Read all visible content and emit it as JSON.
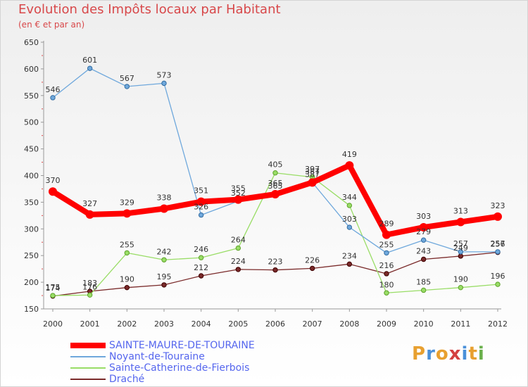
{
  "title": "Evolution des Impôts locaux par Habitant",
  "subtitle": "(en € et par an)",
  "brand": {
    "letters": [
      "P",
      "r",
      "o",
      "x",
      "i",
      "t",
      "i"
    ],
    "colors": [
      "#e8a030",
      "#4a90d9",
      "#e8a030",
      "#d44040",
      "#4a90d9",
      "#e8a030",
      "#6ab04c"
    ]
  },
  "chart_data": {
    "type": "line",
    "title": "Evolution des Impôts locaux par Habitant",
    "subtitle": "(en € et par an)",
    "x": [
      "2000",
      "2001",
      "2002",
      "2003",
      "2004",
      "2005",
      "2006",
      "2007",
      "2008",
      "2009",
      "2010",
      "2011",
      "2012"
    ],
    "ylim": [
      150,
      650
    ],
    "yticks": [
      150,
      200,
      250,
      300,
      350,
      400,
      450,
      500,
      550,
      600,
      650
    ],
    "grid": false,
    "legend": "bottom-left",
    "series": [
      {
        "name": "SAINTE-MAURE-DE-TOURAINE",
        "color": "#ff0000",
        "values": [
          370,
          327,
          329,
          338,
          351,
          355,
          365,
          387,
          419,
          289,
          303,
          313,
          323
        ]
      },
      {
        "name": "Noyant-de-Touraine",
        "color": "#6fa8dc",
        "values": [
          546,
          601,
          567,
          573,
          326,
          352,
          365,
          387,
          303,
          255,
          279,
          257,
          257
        ]
      },
      {
        "name": "Sainte-Catherine-de-Fierbois",
        "color": "#99dd66",
        "values": [
          175,
          176,
          255,
          242,
          246,
          264,
          405,
          397,
          344,
          180,
          185,
          190,
          196
        ]
      },
      {
        "name": "Draché",
        "color": "#7a2a2a",
        "values": [
          174,
          183,
          190,
          195,
          212,
          224,
          223,
          226,
          234,
          216,
          243,
          249,
          256
        ]
      }
    ]
  }
}
